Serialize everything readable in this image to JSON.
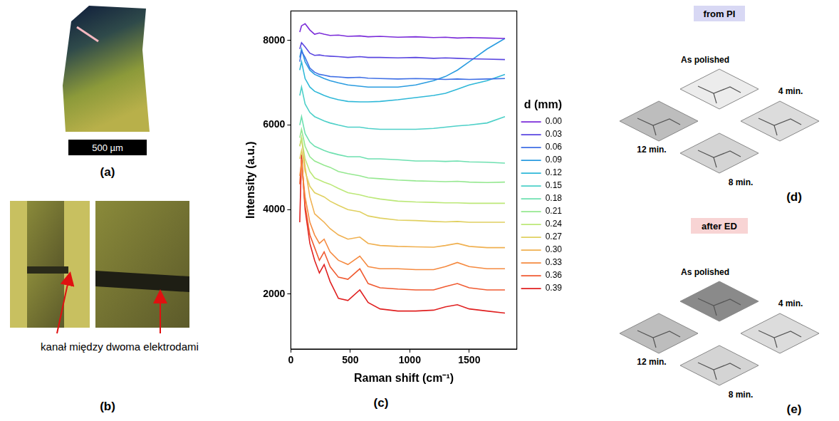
{
  "panels": {
    "a": {
      "label": "(a)",
      "scale_bar": "500 µm"
    },
    "b": {
      "label": "(b)",
      "annotation": "kanał między dwoma elektrodami"
    },
    "c": {
      "label": "(c)"
    },
    "d": {
      "label": "(d)",
      "title": "from PI",
      "tiles": [
        "As polished",
        "4 min.",
        "8 min.",
        "12 min."
      ]
    },
    "e": {
      "label": "(e)",
      "title": "after ED",
      "tiles": [
        "As polished",
        "4 min.",
        "8 min.",
        "12 min."
      ]
    }
  },
  "chart_data": {
    "type": "line",
    "x_label": "Raman shift (cm⁻¹)",
    "y_label": "Intensity (a.u.)",
    "legend": "right",
    "legend_title": "d (mm)",
    "grid": false,
    "xlim": [
      0,
      1900
    ],
    "xticks": [
      0,
      500,
      1000,
      1500
    ],
    "ylim": [
      700,
      8700
    ],
    "yticks": [
      2000,
      4000,
      6000,
      8000
    ],
    "x": [
      75,
      90,
      120,
      160,
      200,
      240,
      280,
      330,
      400,
      480,
      580,
      650,
      750,
      900,
      1050,
      1200,
      1300,
      1400,
      1500,
      1650,
      1800
    ],
    "series": [
      {
        "name": "0.00",
        "color": "#7b2cd9",
        "values": [
          8200,
          8350,
          8400,
          8250,
          8150,
          8180,
          8150,
          8120,
          8130,
          8100,
          8110,
          8090,
          8100,
          8080,
          8090,
          8070,
          8080,
          8060,
          8070,
          8060,
          8050
        ]
      },
      {
        "name": "0.03",
        "color": "#5a46e0",
        "values": [
          7800,
          7950,
          7850,
          7700,
          7650,
          7660,
          7640,
          7630,
          7620,
          7600,
          7620,
          7600,
          7600,
          7590,
          7600,
          7580,
          7590,
          7580,
          7570,
          7560,
          7550
        ]
      },
      {
        "name": "0.06",
        "color": "#3f6fe5",
        "values": [
          7500,
          7750,
          7600,
          7350,
          7250,
          7200,
          7180,
          7150,
          7140,
          7120,
          7130,
          7110,
          7100,
          7090,
          7100,
          7090,
          7080,
          7090,
          7080,
          7090,
          7100
        ]
      },
      {
        "name": "0.09",
        "color": "#2a9ce0",
        "values": [
          7600,
          7800,
          7500,
          7300,
          7200,
          7150,
          7100,
          7050,
          7000,
          6950,
          6920,
          6900,
          6900,
          6900,
          6950,
          7050,
          7150,
          7300,
          7500,
          7800,
          8050
        ]
      },
      {
        "name": "0.12",
        "color": "#2fb8d8",
        "values": [
          7300,
          7500,
          7100,
          6900,
          6800,
          6750,
          6700,
          6650,
          6600,
          6560,
          6550,
          6550,
          6560,
          6600,
          6650,
          6700,
          6750,
          6850,
          6950,
          7050,
          7200
        ]
      },
      {
        "name": "0.15",
        "color": "#4dd0c8",
        "values": [
          6700,
          6900,
          6500,
          6300,
          6200,
          6150,
          6100,
          6050,
          6000,
          5950,
          5950,
          5920,
          5900,
          5900,
          5900,
          5920,
          5950,
          5980,
          6000,
          6050,
          6200
        ]
      },
      {
        "name": "0.18",
        "color": "#6ee0b0",
        "values": [
          6000,
          6200,
          5800,
          5600,
          5500,
          5450,
          5400,
          5350,
          5300,
          5250,
          5250,
          5200,
          5200,
          5180,
          5150,
          5150,
          5140,
          5150,
          5130,
          5120,
          5100
        ]
      },
      {
        "name": "0.21",
        "color": "#95e890",
        "values": [
          5700,
          5900,
          5500,
          5250,
          5150,
          5100,
          5050,
          5000,
          4900,
          4850,
          4800,
          4750,
          4730,
          4700,
          4680,
          4670,
          4660,
          4670,
          4650,
          4640,
          4650
        ]
      },
      {
        "name": "0.24",
        "color": "#bce878",
        "values": [
          5500,
          5700,
          5200,
          4900,
          4750,
          4700,
          4650,
          4600,
          4500,
          4400,
          4350,
          4300,
          4250,
          4200,
          4180,
          4170,
          4160,
          4160,
          4150,
          4150,
          4150
        ]
      },
      {
        "name": "0.27",
        "color": "#e0d060",
        "values": [
          5200,
          5400,
          4900,
          4550,
          4400,
          4350,
          4300,
          4200,
          4100,
          4000,
          3950,
          3850,
          3800,
          3750,
          3740,
          3720,
          3710,
          3720,
          3700,
          3700,
          3700
        ]
      },
      {
        "name": "0.30",
        "color": "#f0b050",
        "values": [
          5500,
          5700,
          5000,
          4300,
          3900,
          3800,
          3700,
          3550,
          3400,
          3300,
          3350,
          3200,
          3150,
          3130,
          3120,
          3110,
          3150,
          3200,
          3130,
          3100,
          3100
        ]
      },
      {
        "name": "0.33",
        "color": "#f58a40",
        "values": [
          4800,
          5100,
          4300,
          3700,
          3400,
          3200,
          3300,
          3000,
          2800,
          2700,
          2900,
          2650,
          2600,
          2600,
          2580,
          2580,
          2650,
          2750,
          2650,
          2600,
          2600
        ]
      },
      {
        "name": "0.36",
        "color": "#f05a30",
        "values": [
          4600,
          5200,
          4100,
          3400,
          3100,
          2800,
          3000,
          2650,
          2400,
          2350,
          2600,
          2250,
          2150,
          2120,
          2100,
          2100,
          2180,
          2250,
          2150,
          2100,
          2100
        ]
      },
      {
        "name": "0.39",
        "color": "#e02020",
        "values": [
          3700,
          5300,
          4000,
          3200,
          2800,
          2500,
          2700,
          2300,
          1900,
          1850,
          2100,
          1800,
          1650,
          1600,
          1600,
          1620,
          1700,
          1750,
          1650,
          1600,
          1550
        ]
      }
    ]
  }
}
